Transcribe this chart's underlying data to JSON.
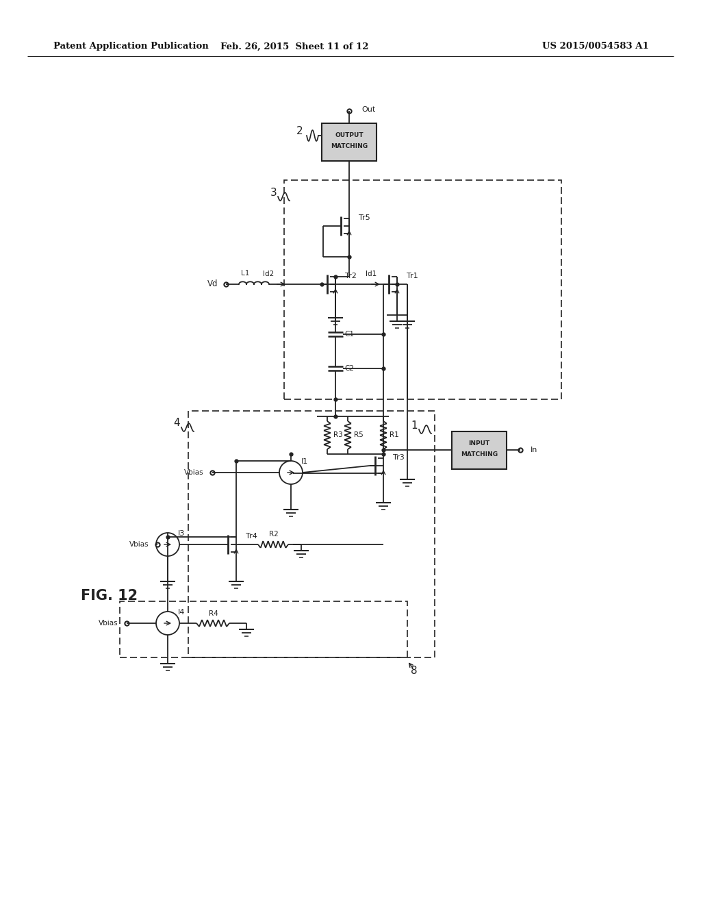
{
  "bg_color": "#ffffff",
  "header_left": "Patent Application Publication",
  "header_mid": "Feb. 26, 2015  Sheet 11 of 12",
  "header_right": "US 2015/0054583 A1",
  "fig_label": "FIG. 12",
  "line_color": "#222222",
  "lw": 1.3
}
